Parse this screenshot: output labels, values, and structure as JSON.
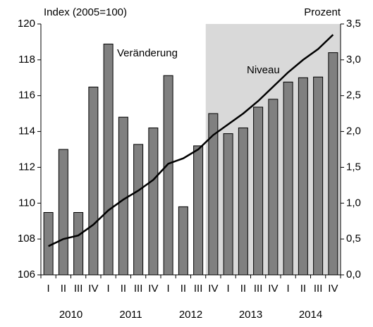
{
  "chart_data": {
    "type": "bar",
    "y_label": "Index (2005=100)",
    "y2_label": "Prozent",
    "categories": [
      "I",
      "II",
      "III",
      "IV",
      "I",
      "II",
      "III",
      "IV",
      "I",
      "II",
      "III",
      "IV",
      "I",
      "II",
      "III",
      "IV",
      "I",
      "II",
      "III",
      "IV"
    ],
    "years": [
      "2010",
      "2011",
      "2012",
      "2013",
      "2014"
    ],
    "shade_from_category": 11,
    "series": [
      {
        "name": "Veränderung",
        "type": "bar",
        "axis": "y2",
        "color": "#808080",
        "values": [
          0.87,
          1.75,
          0.87,
          2.62,
          3.22,
          2.2,
          1.82,
          2.05,
          2.78,
          0.95,
          1.8,
          2.25,
          1.97,
          2.05,
          2.34,
          2.45,
          2.69,
          2.75,
          2.76,
          3.1
        ]
      },
      {
        "name": "Niveau",
        "type": "line",
        "axis": "y",
        "color": "#000000",
        "values": [
          107.6,
          108.0,
          108.2,
          108.8,
          109.6,
          110.2,
          110.7,
          111.3,
          112.2,
          112.5,
          113.0,
          113.8,
          114.4,
          115.0,
          115.7,
          116.5,
          117.3,
          118.0,
          118.6,
          119.4
        ]
      }
    ],
    "ylim": [
      106,
      120
    ],
    "yticks": [
      106,
      108,
      110,
      112,
      114,
      116,
      118,
      120
    ],
    "y2lim": [
      0,
      3.5
    ],
    "y2ticks": [
      {
        "value": 0,
        "label": "0,0"
      },
      {
        "value": 0.5,
        "label": "0,5"
      },
      {
        "value": 1,
        "label": "1,0"
      },
      {
        "value": 1.5,
        "label": "1,5"
      },
      {
        "value": 2,
        "label": "2,0"
      },
      {
        "value": 2.5,
        "label": "2,5"
      },
      {
        "value": 3,
        "label": "3,0"
      },
      {
        "value": 3.5,
        "label": "3,5"
      }
    ]
  }
}
